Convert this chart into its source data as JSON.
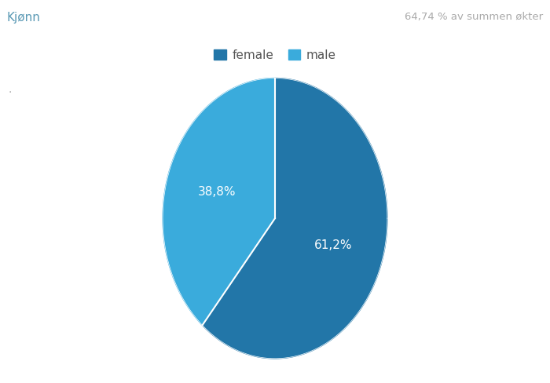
{
  "title_left": "Kjønn",
  "title_right": "64,74 % av summen økter",
  "labels": [
    "female",
    "male"
  ],
  "values": [
    61.2,
    38.8
  ],
  "colors": [
    "#2276a8",
    "#3aabdc"
  ],
  "slice_labels": [
    "61,2%",
    "38,8%"
  ],
  "background_color": "#ffffff",
  "startangle": 90
}
